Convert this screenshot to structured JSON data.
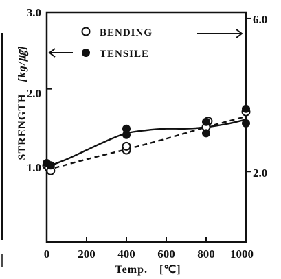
{
  "chart_data": {
    "type": "scatter",
    "xlabel": "Temp.",
    "xunit": "[℃]",
    "ylabel": "STRENGTH",
    "yunit": "[kg/㎍]",
    "xlim": [
      0,
      1000
    ],
    "ylim": [
      0,
      3.0
    ],
    "x_ticks": [
      "0",
      "200",
      "400",
      "600",
      "800",
      "1000"
    ],
    "x_tick_values": [
      0,
      200,
      400,
      600,
      800,
      1000
    ],
    "y_ticks": [
      "1.0",
      "2.0",
      "3.0"
    ],
    "y_tick_values": [
      1.0,
      2.0,
      3.0
    ],
    "right_ticks": [
      "6.0",
      "2.0"
    ],
    "right_tick_values_on_left_scale": [
      2.92,
      0.92
    ],
    "grid": false,
    "legend_position": "top-center",
    "series": [
      {
        "name": "BENDING",
        "marker": "open-circle",
        "line": "dashed",
        "points": [
          [
            0,
            1.0
          ],
          [
            10,
            0.97
          ],
          [
            20,
            0.93
          ],
          [
            400,
            1.2
          ],
          [
            400,
            1.25
          ],
          [
            800,
            1.5
          ],
          [
            810,
            1.58
          ],
          [
            1000,
            1.7
          ]
        ],
        "fit": [
          [
            0,
            0.94
          ],
          [
            200,
            1.08
          ],
          [
            400,
            1.21
          ],
          [
            600,
            1.35
          ],
          [
            800,
            1.5
          ],
          [
            1000,
            1.64
          ]
        ]
      },
      {
        "name": "TENSILE",
        "marker": "filled-circle",
        "line": "solid",
        "points": [
          [
            0,
            1.03
          ],
          [
            20,
            1.0
          ],
          [
            400,
            1.4
          ],
          [
            400,
            1.48
          ],
          [
            800,
            1.42
          ],
          [
            800,
            1.57
          ],
          [
            1000,
            1.55
          ],
          [
            1000,
            1.74
          ]
        ],
        "fit": [
          [
            0,
            0.98
          ],
          [
            100,
            1.08
          ],
          [
            200,
            1.2
          ],
          [
            300,
            1.32
          ],
          [
            400,
            1.42
          ],
          [
            500,
            1.46
          ],
          [
            600,
            1.48
          ],
          [
            700,
            1.48
          ],
          [
            800,
            1.5
          ],
          [
            900,
            1.54
          ],
          [
            1000,
            1.6
          ]
        ]
      }
    ]
  }
}
